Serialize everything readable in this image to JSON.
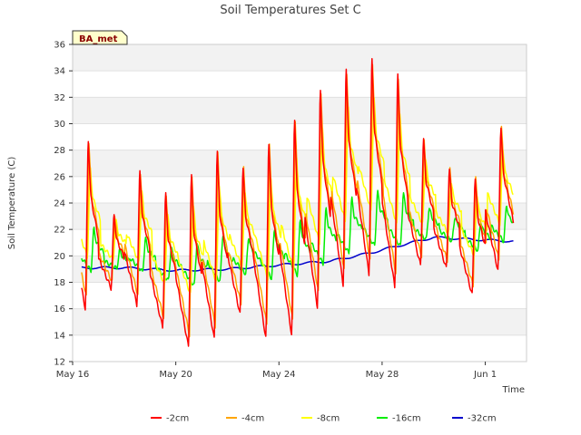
{
  "chart_data": {
    "type": "line",
    "title": "Soil Temperatures Set C",
    "badge": "BA_met",
    "xlabel": "Time",
    "ylabel": "Soil Temperature (C)",
    "ylim": [
      12,
      36
    ],
    "yticks": [
      12,
      14,
      16,
      18,
      20,
      22,
      24,
      26,
      28,
      30,
      32,
      34,
      36
    ],
    "xlim_days": [
      0,
      17.6
    ],
    "xticks": [
      {
        "label": "May 16",
        "day": 0
      },
      {
        "label": "May 20",
        "day": 4
      },
      {
        "label": "May 24",
        "day": 8
      },
      {
        "label": "May 28",
        "day": 12
      },
      {
        "label": "Jun 1",
        "day": 16
      }
    ],
    "grid": true,
    "legend_position": "bottom",
    "x_start_day": 0.35,
    "x_end_day": 17.1,
    "day_peak_phase": 0.6,
    "days": [
      {
        "date": "May 16",
        "max2": 29.2,
        "min2": 15.9
      },
      {
        "date": "May 17",
        "max2": 23.3,
        "min2": 17.5
      },
      {
        "date": "May 18",
        "max2": 26.7,
        "min2": 16.2
      },
      {
        "date": "May 19",
        "max2": 25.0,
        "min2": 14.5
      },
      {
        "date": "May 20",
        "max2": 26.5,
        "min2": 13.0
      },
      {
        "date": "May 21",
        "max2": 28.4,
        "min2": 13.6
      },
      {
        "date": "May 22",
        "max2": 27.1,
        "min2": 15.5
      },
      {
        "date": "May 23",
        "max2": 29.1,
        "min2": 13.7
      },
      {
        "date": "May 24",
        "max2": 31.0,
        "min2": 13.9
      },
      {
        "date": "May 25",
        "max2": 33.2,
        "min2": 16.0
      },
      {
        "date": "May 26",
        "max2": 34.7,
        "min2": 17.7
      },
      {
        "date": "May 27",
        "max2": 35.4,
        "min2": 18.5
      },
      {
        "date": "May 28",
        "max2": 34.2,
        "min2": 17.5
      },
      {
        "date": "May 29",
        "max2": 29.1,
        "min2": 19.2
      },
      {
        "date": "May 30",
        "max2": 26.8,
        "min2": 19.0
      },
      {
        "date": "May 31",
        "max2": 26.2,
        "min2": 17.0
      },
      {
        "date": "Jun 1",
        "max2": 30.2,
        "min2": 18.8
      }
    ],
    "series": [
      {
        "name": "-2cm",
        "color": "#ff0000"
      },
      {
        "name": "-4cm",
        "color": "#ffa500"
      },
      {
        "name": "-8cm",
        "color": "#ffff00"
      },
      {
        "name": "-16cm",
        "color": "#00ee00"
      },
      {
        "name": "-32cm",
        "color": "#0000cc"
      }
    ],
    "deep_32cm": [
      {
        "day": 0.35,
        "value": 19.1
      },
      {
        "day": 2.0,
        "value": 19.1
      },
      {
        "day": 4.0,
        "value": 18.9
      },
      {
        "day": 6.0,
        "value": 19.0
      },
      {
        "day": 8.0,
        "value": 19.3
      },
      {
        "day": 10.0,
        "value": 19.6
      },
      {
        "day": 11.5,
        "value": 20.2
      },
      {
        "day": 12.5,
        "value": 20.7
      },
      {
        "day": 14.0,
        "value": 21.4
      },
      {
        "day": 15.0,
        "value": 21.3
      },
      {
        "day": 16.0,
        "value": 21.2
      },
      {
        "day": 17.1,
        "value": 21.1
      }
    ]
  }
}
